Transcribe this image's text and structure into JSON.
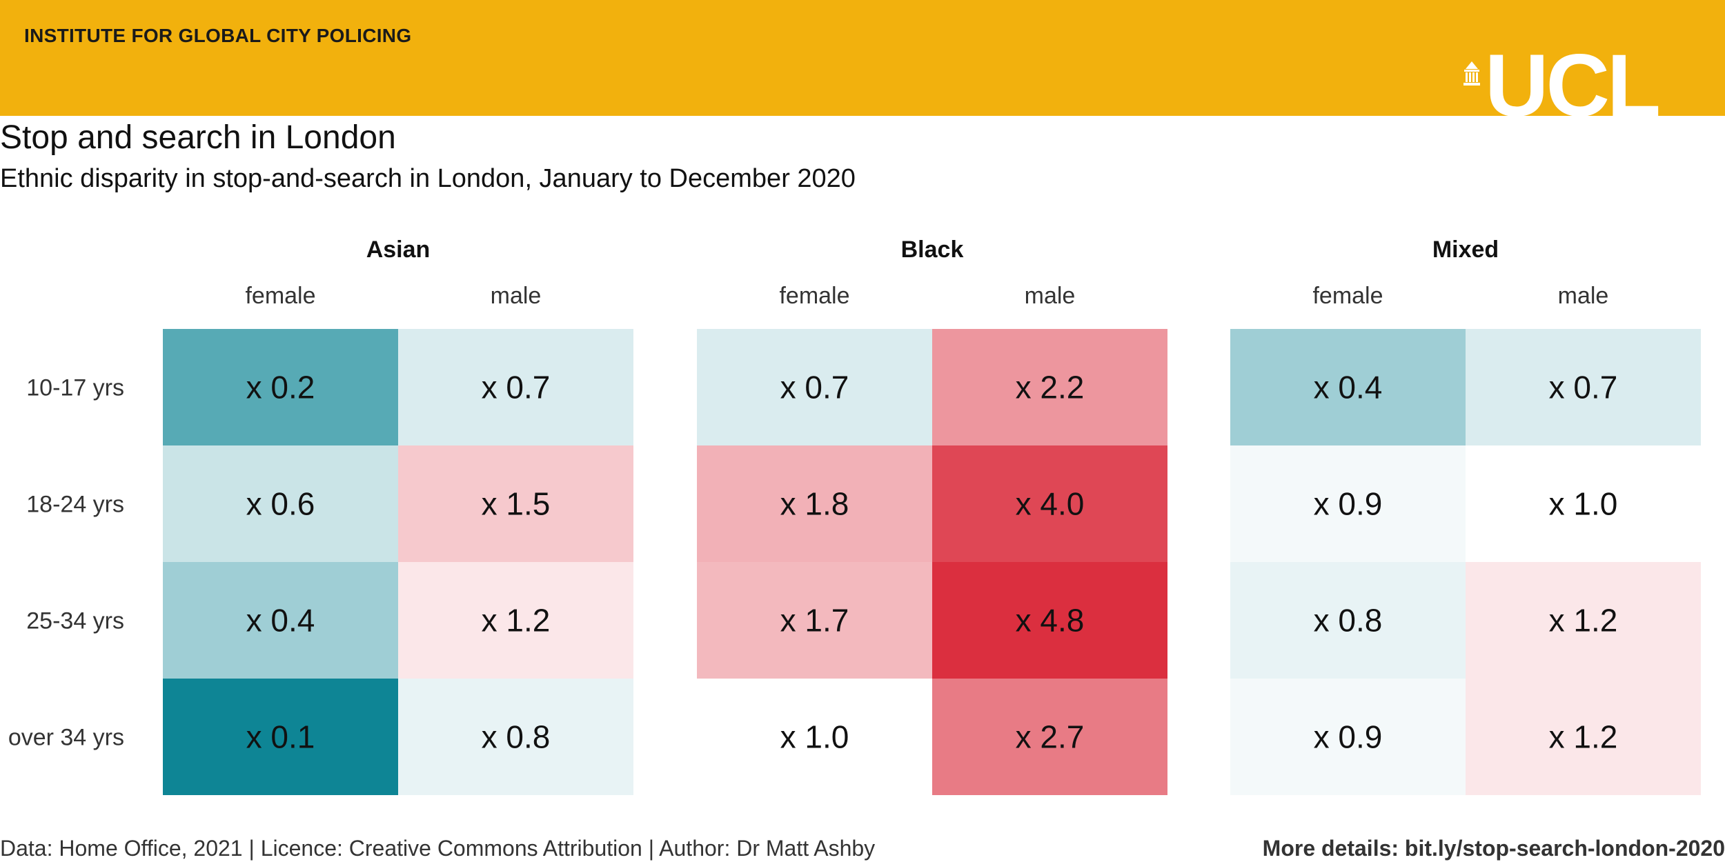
{
  "header": {
    "organisation": "INSTITUTE FOR GLOBAL CITY POLICING",
    "logo_text": "UCL",
    "banner_color": "#F2B10D"
  },
  "title": "Stop and search in London",
  "subtitle": "Ethnic disparity in stop-and-search in London, January to December 2020",
  "footer": {
    "source": "Data: Home Office, 2021 | Licence: Creative Commons Attribution | Author: Dr Matt Ashby",
    "details": "More details: bit.ly/stop-search-london-2020"
  },
  "chart_data": {
    "type": "heatmap",
    "panels": [
      "Asian",
      "Black",
      "Mixed"
    ],
    "columns": [
      "female",
      "male"
    ],
    "rows": [
      "10-17 yrs",
      "18-24 yrs",
      "25-34 yrs",
      "over 34 yrs"
    ],
    "value_prefix": "x ",
    "values": {
      "Asian": {
        "female": [
          0.2,
          0.6,
          0.4,
          0.1
        ],
        "male": [
          0.7,
          1.5,
          1.2,
          0.8
        ]
      },
      "Black": {
        "female": [
          0.7,
          1.8,
          1.7,
          1.0
        ],
        "male": [
          2.2,
          4.0,
          4.8,
          2.7
        ]
      },
      "Mixed": {
        "female": [
          0.4,
          0.9,
          0.8,
          0.9
        ],
        "male": [
          0.7,
          1.0,
          1.2,
          1.2
        ]
      }
    },
    "colors": {
      "low": "#0E8595",
      "mid": "#FFFFFF",
      "high": "#DB2F3F"
    },
    "grid": false
  }
}
